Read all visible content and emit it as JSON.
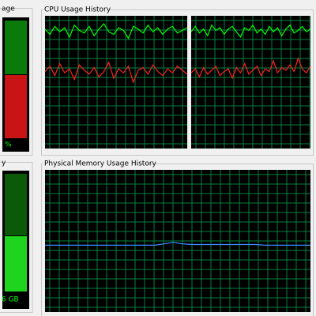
{
  "cpu_usage": {
    "label": "age",
    "unit": "%"
  },
  "memory": {
    "label": "y",
    "amount": "6 GB"
  },
  "cpu_history": {
    "title": "CPU Usage History",
    "graphs": [
      {
        "total": [
          90,
          86,
          92,
          88,
          91,
          84,
          93,
          89,
          87,
          92,
          85,
          90,
          94,
          88,
          86,
          91,
          89,
          83,
          92,
          90,
          87,
          93,
          88,
          91,
          86,
          90,
          92,
          87,
          89,
          91
        ],
        "kernel": [
          58,
          62,
          55,
          64,
          57,
          60,
          52,
          63,
          59,
          56,
          61,
          54,
          58,
          65,
          53,
          60,
          57,
          62,
          50,
          59,
          61,
          56,
          63,
          58,
          55,
          60,
          57,
          62,
          59,
          56
        ]
      },
      {
        "total": [
          88,
          92,
          87,
          90,
          85,
          93,
          89,
          91,
          86,
          90,
          92,
          88,
          84,
          91,
          89,
          93,
          87,
          90,
          86,
          92,
          88,
          91,
          85,
          90,
          93,
          87,
          89,
          92,
          88,
          90
        ],
        "kernel": [
          57,
          60,
          54,
          61,
          56,
          59,
          62,
          55,
          58,
          60,
          53,
          61,
          57,
          64,
          56,
          59,
          62,
          55,
          60,
          58,
          66,
          57,
          61,
          59,
          63,
          58,
          68,
          60,
          57,
          62
        ]
      }
    ]
  },
  "memory_history": {
    "title": "Physical Memory Usage History",
    "values": [
      47,
      47,
      47,
      47,
      47,
      47,
      47,
      47,
      47,
      47,
      47,
      47,
      47,
      48,
      49,
      48,
      47.5,
      47.5,
      47.5,
      47.5,
      47.5,
      47.5,
      47.5,
      47.5,
      47,
      47,
      47,
      47,
      47,
      47
    ]
  }
}
